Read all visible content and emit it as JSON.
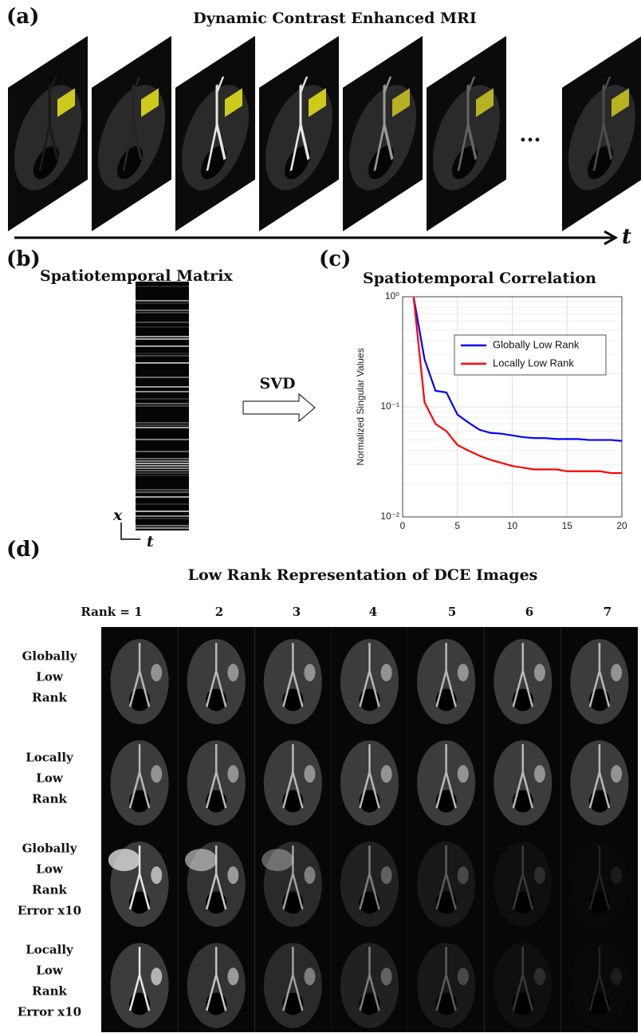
{
  "panel_a": {
    "label": "(a)",
    "title": "Dynamic Contrast Enhanced MRI",
    "ellipsis": "...",
    "time_axis": "t"
  },
  "panel_b": {
    "label": "(b)",
    "title": "Spatiotemporal Matrix",
    "x_axis": "x",
    "t_axis": "t",
    "arrow_label": "SVD"
  },
  "panel_c": {
    "label": "(c)",
    "title": "Spatiotemporal Correlation"
  },
  "chart_data": {
    "type": "line",
    "ylabel": "Normalized Singular Values",
    "x": [
      1,
      2,
      3,
      4,
      5,
      6,
      7,
      8,
      9,
      10,
      11,
      12,
      13,
      14,
      15,
      16,
      17,
      18,
      19,
      20
    ],
    "series": [
      {
        "name": "Globally Low Rank",
        "color": "#0000ff",
        "values": [
          1,
          0.27,
          0.14,
          0.135,
          0.085,
          0.072,
          0.062,
          0.058,
          0.057,
          0.055,
          0.053,
          0.052,
          0.052,
          0.051,
          0.051,
          0.051,
          0.05,
          0.05,
          0.05,
          0.049
        ]
      },
      {
        "name": "Locally Low Rank",
        "color": "#ff0000",
        "values": [
          1,
          0.11,
          0.07,
          0.06,
          0.045,
          0.04,
          0.036,
          0.033,
          0.031,
          0.029,
          0.028,
          0.027,
          0.027,
          0.027,
          0.026,
          0.026,
          0.026,
          0.026,
          0.025,
          0.025
        ]
      }
    ],
    "xlim": [
      0,
      20
    ],
    "ylim": [
      0.01,
      1
    ],
    "xticks": [
      0,
      5,
      10,
      15,
      20
    ],
    "yticks": [
      {
        "value": 0.01,
        "label": "10⁻²"
      },
      {
        "value": 0.1,
        "label": "10⁻¹"
      },
      {
        "value": 1,
        "label": "10⁰"
      }
    ],
    "log_y": true,
    "grid": true,
    "legend": "upper right"
  },
  "panel_d": {
    "label": "(d)",
    "title": "Low Rank Representation of DCE Images",
    "ranks": [
      "Rank = 1",
      "2",
      "3",
      "4",
      "5",
      "6",
      "7"
    ],
    "rows": [
      [
        "Globally",
        "Low",
        "Rank"
      ],
      [
        "Locally",
        "Low",
        "Rank"
      ],
      [
        "Globally",
        "Low",
        "Rank",
        "Error x10"
      ],
      [
        "Locally",
        "Low",
        "Rank",
        "Error x10"
      ]
    ]
  }
}
